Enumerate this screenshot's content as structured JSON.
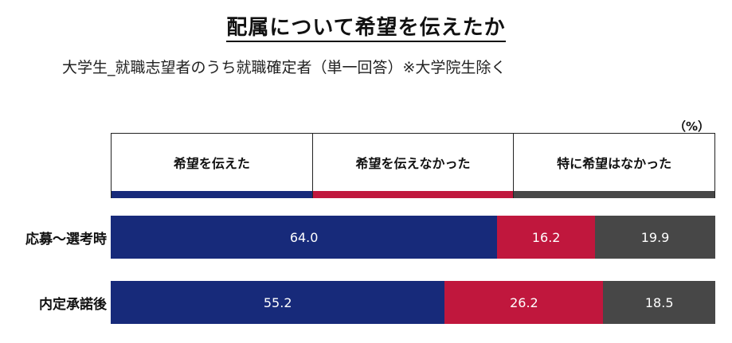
{
  "chart_data": {
    "type": "bar",
    "orientation": "horizontal-stacked-100",
    "title": "配属について希望を伝えたか",
    "subtitle": "大学生_就職志望者のうち就職確定者（単一回答）※大学院生除く",
    "unit": "（%）",
    "categories": [
      "応募～選考時",
      "内定承諾後"
    ],
    "series": [
      {
        "name": "希望を伝えた",
        "color": "#172a7a",
        "values": [
          64.0,
          55.2
        ]
      },
      {
        "name": "希望を伝えなかった",
        "color": "#c0173d",
        "values": [
          16.2,
          26.2
        ]
      },
      {
        "name": "特に希望はなかった",
        "color": "#474747",
        "values": [
          19.9,
          18.5
        ]
      }
    ],
    "legend_position": "top",
    "grid": false
  }
}
